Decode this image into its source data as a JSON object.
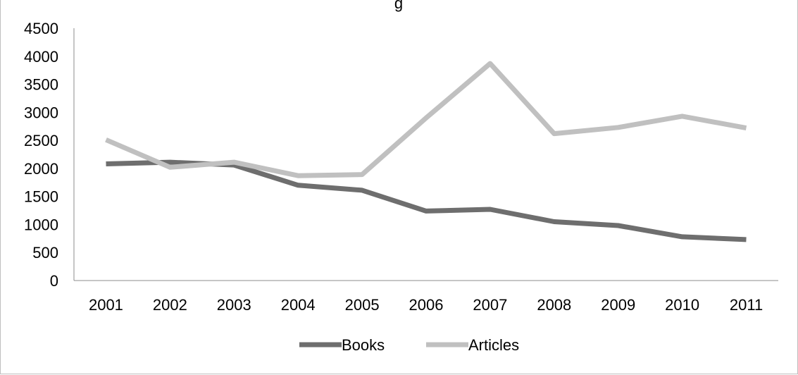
{
  "chart_data": {
    "type": "line",
    "title": "g",
    "categories": [
      "2001",
      "2002",
      "2003",
      "2004",
      "2005",
      "2006",
      "2007",
      "2008",
      "2009",
      "2010",
      "2011"
    ],
    "series": [
      {
        "name": "Books",
        "color": "#6e6e6e",
        "values": [
          2080,
          2110,
          2060,
          1700,
          1610,
          1240,
          1270,
          1050,
          980,
          780,
          730
        ]
      },
      {
        "name": "Articles",
        "color": "#c0c0c0",
        "values": [
          2510,
          2020,
          2110,
          1870,
          1890,
          2900,
          3870,
          2620,
          2730,
          2930,
          2720
        ]
      }
    ],
    "ylim": [
      0,
      4500
    ],
    "yticks": [
      "0",
      "500",
      "1000",
      "1500",
      "2000",
      "2500",
      "3000",
      "3500",
      "4000",
      "4500"
    ],
    "grid": false,
    "legend_position": "bottom"
  }
}
